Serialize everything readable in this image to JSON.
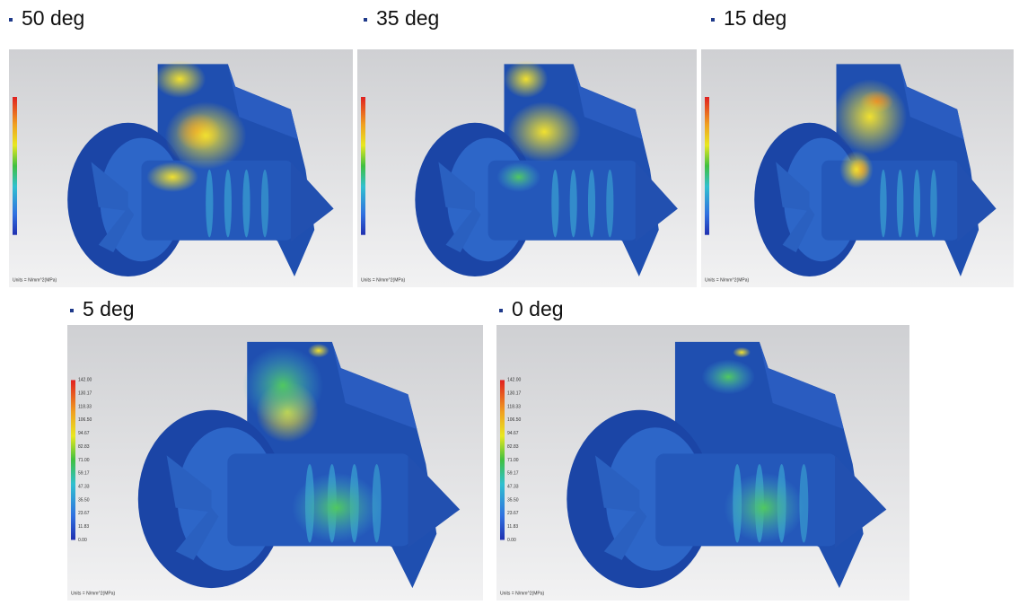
{
  "panels": [
    {
      "title": "50 deg",
      "units": "Units = N/mm^2(MPa)"
    },
    {
      "title": "35 deg",
      "units": "Units = N/mm^2(MPa)"
    },
    {
      "title": "15 deg",
      "units": "Units = N/mm^2(MPa)"
    },
    {
      "title": "5 deg",
      "units": "Units = N/mm^2(MPa)",
      "legend": [
        "142.00",
        "130.17",
        "118.33",
        "106.50",
        "94.67",
        "82.83",
        "71.00",
        "59.17",
        "47.33",
        "35.50",
        "23.67",
        "11.83",
        "0.00"
      ]
    },
    {
      "title": "0 deg",
      "units": "Units = N/mm^2(MPa)",
      "legend": [
        "142.00",
        "130.17",
        "118.33",
        "106.50",
        "94.67",
        "82.83",
        "71.00",
        "59.17",
        "47.33",
        "35.50",
        "23.67",
        "11.83",
        "0.00"
      ]
    }
  ]
}
